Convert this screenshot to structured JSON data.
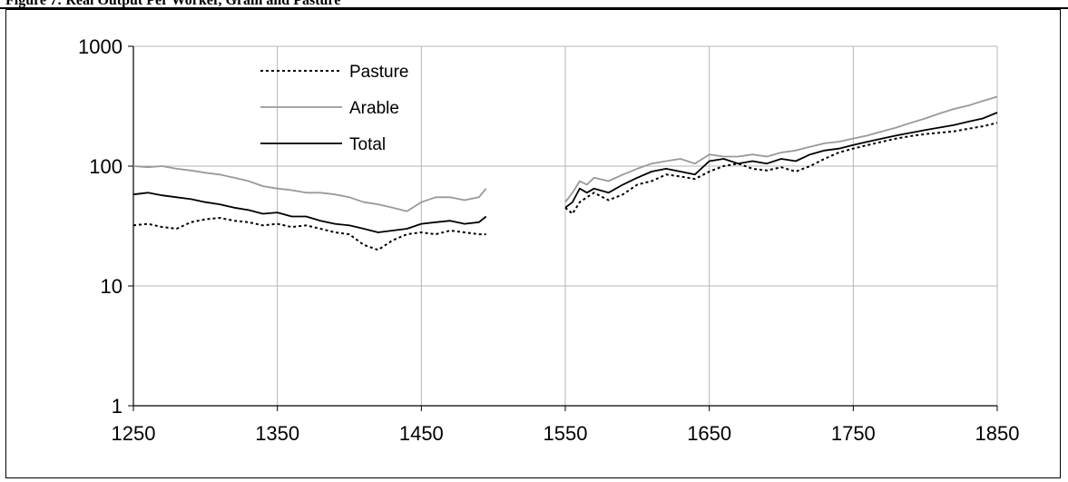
{
  "caption": "Figure 7: Real Output Per Worker, Grain and Pasture",
  "chart_data": {
    "type": "line",
    "title": "",
    "xlabel": "",
    "ylabel": "",
    "y_scale": "log",
    "xlim": [
      1250,
      1850
    ],
    "ylim": [
      1,
      1000
    ],
    "x_ticks": [
      1250,
      1350,
      1450,
      1550,
      1650,
      1750,
      1850
    ],
    "y_ticks": [
      1,
      10,
      100,
      1000
    ],
    "grid": "major vertical and horizontal",
    "legend": "upper-left inside plot",
    "x": [
      1250,
      1260,
      1270,
      1280,
      1290,
      1300,
      1310,
      1320,
      1330,
      1340,
      1350,
      1360,
      1370,
      1380,
      1390,
      1400,
      1410,
      1420,
      1430,
      1440,
      1450,
      1460,
      1470,
      1480,
      1490,
      1495,
      1550,
      1555,
      1560,
      1565,
      1570,
      1580,
      1590,
      1600,
      1610,
      1620,
      1630,
      1640,
      1650,
      1660,
      1670,
      1680,
      1690,
      1700,
      1710,
      1720,
      1730,
      1740,
      1750,
      1760,
      1770,
      1780,
      1790,
      1800,
      1810,
      1820,
      1830,
      1840,
      1850
    ],
    "series": [
      {
        "name": "Pasture",
        "color": "#000000",
        "style": "dotted",
        "values": [
          32,
          33,
          31,
          30,
          34,
          36,
          37,
          35,
          34,
          32,
          33,
          31,
          32,
          30,
          28,
          27,
          22,
          20,
          24,
          27,
          28,
          27,
          29,
          28,
          27,
          27,
          45,
          40,
          50,
          55,
          60,
          52,
          58,
          70,
          75,
          85,
          82,
          78,
          90,
          100,
          105,
          95,
          92,
          98,
          90,
          100,
          115,
          130,
          140,
          150,
          160,
          170,
          178,
          185,
          190,
          195,
          205,
          215,
          230
        ]
      },
      {
        "name": "Arable",
        "color": "#999999",
        "style": "solid",
        "values": [
          100,
          98,
          100,
          95,
          92,
          88,
          85,
          80,
          75,
          68,
          65,
          63,
          60,
          60,
          58,
          55,
          50,
          48,
          45,
          42,
          50,
          55,
          55,
          52,
          55,
          65,
          50,
          60,
          75,
          70,
          80,
          75,
          85,
          95,
          105,
          110,
          115,
          105,
          125,
          120,
          120,
          125,
          120,
          130,
          135,
          145,
          155,
          160,
          170,
          180,
          195,
          210,
          230,
          250,
          275,
          300,
          320,
          350,
          380
        ]
      },
      {
        "name": "Total",
        "color": "#000000",
        "style": "solid",
        "values": [
          58,
          60,
          57,
          55,
          53,
          50,
          48,
          45,
          43,
          40,
          41,
          38,
          38,
          35,
          33,
          32,
          30,
          28,
          29,
          30,
          33,
          34,
          35,
          33,
          34,
          38,
          45,
          50,
          65,
          60,
          65,
          60,
          70,
          80,
          90,
          95,
          90,
          85,
          110,
          115,
          105,
          110,
          105,
          115,
          110,
          125,
          135,
          140,
          150,
          160,
          170,
          180,
          190,
          200,
          210,
          220,
          235,
          250,
          280
        ]
      }
    ]
  }
}
